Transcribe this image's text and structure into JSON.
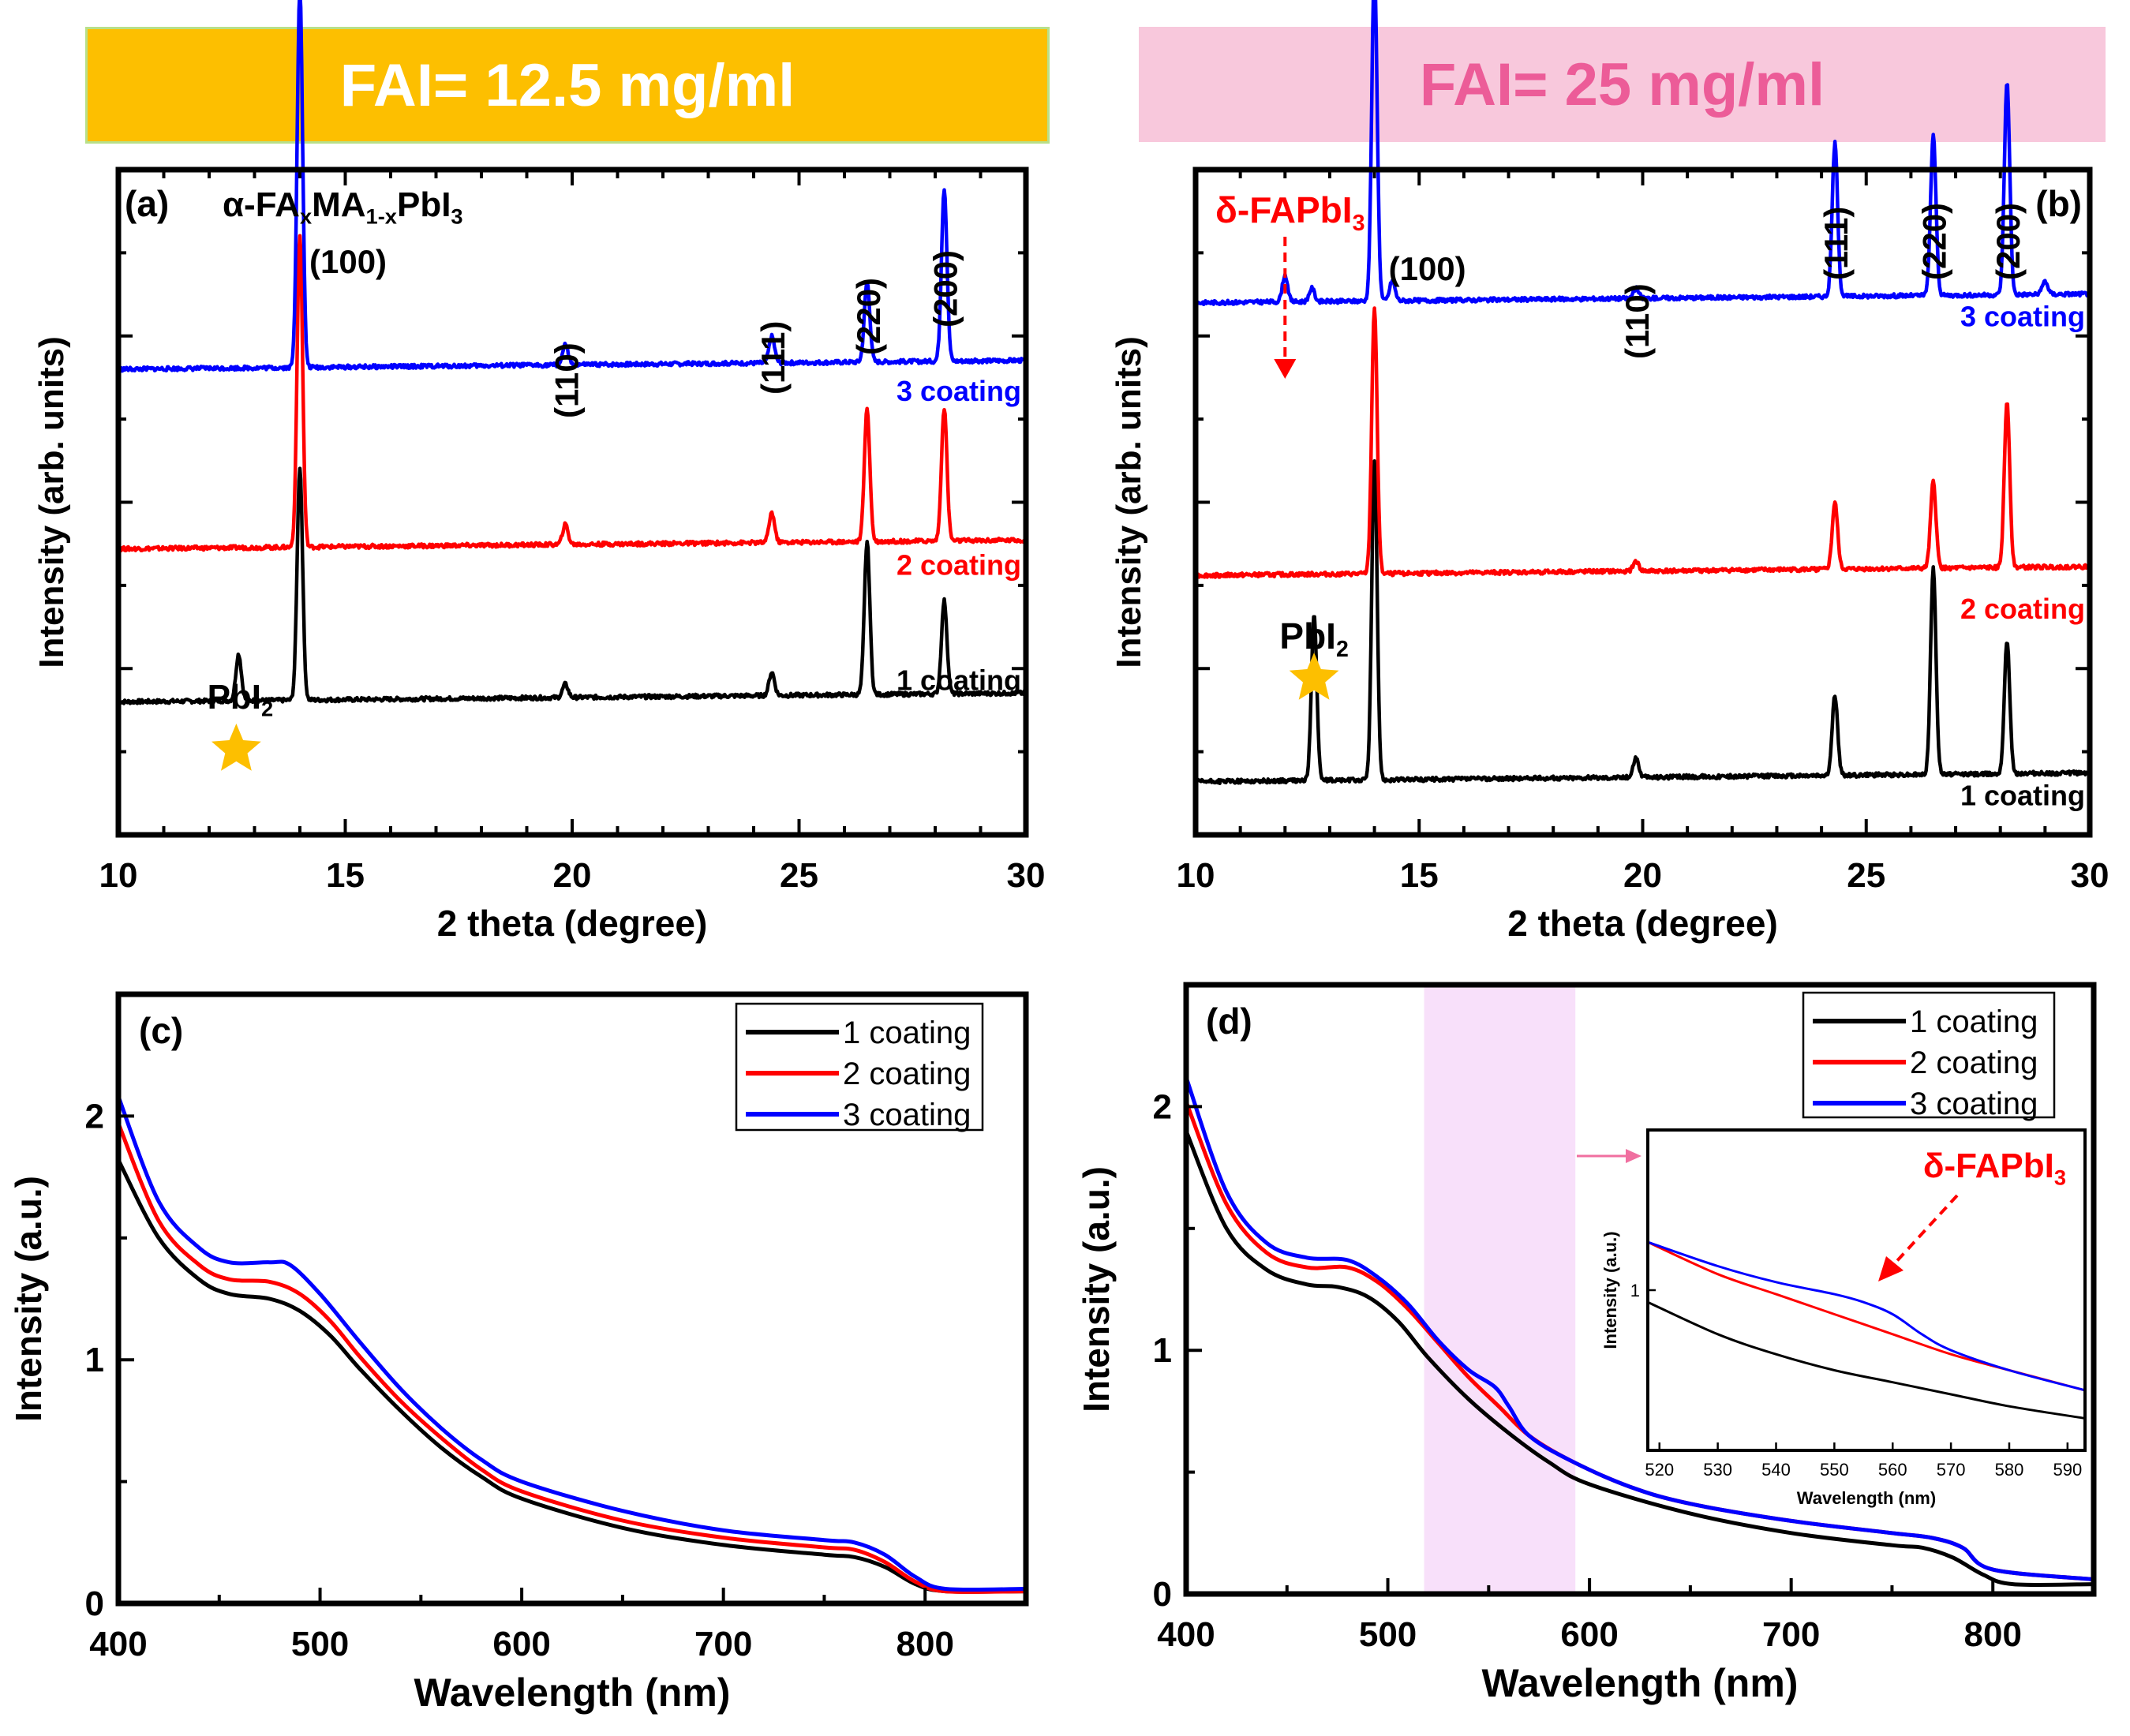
{
  "banners": {
    "left": {
      "text": "FAI= 12.5 mg/ml",
      "color": "#fdbf00"
    },
    "right": {
      "text": "FAI= 25 mg/ml",
      "color": "#f8c8dc"
    }
  },
  "colors": {
    "coating1": "#000000",
    "coating2": "#ff0000",
    "coating3": "#0000ff",
    "star": "#fdbf00",
    "highlight": "#f8e0fa",
    "pink_arrow": "#f06fa0"
  },
  "chart_data": [
    {
      "id": "a",
      "type": "line",
      "panel_label": "(a)",
      "title": "α-FAxMA1-xPbI3",
      "title_parts": {
        "main": "α-FA",
        "sub1": "x",
        "mid": "MA",
        "sub2": "1-x",
        "end": "PbI",
        "sub3": "3"
      },
      "xlabel": "2 theta (degree)",
      "ylabel": "Intensity (arb. units)",
      "xlim": [
        10,
        30
      ],
      "xticks": [
        "10",
        "15",
        "20",
        "25",
        "30"
      ],
      "series": [
        {
          "name": "1 coating",
          "label": "1 coating",
          "baseline": 0.2,
          "peaks": [
            [
              12.65,
              0.07
            ],
            [
              14.0,
              0.35
            ],
            [
              19.85,
              0.02
            ],
            [
              24.4,
              0.035
            ],
            [
              26.5,
              0.23
            ],
            [
              28.2,
              0.14
            ]
          ]
        },
        {
          "name": "2 coating",
          "label": "2 coating",
          "baseline": 0.43,
          "peaks": [
            [
              14.0,
              0.47
            ],
            [
              19.85,
              0.03
            ],
            [
              24.4,
              0.045
            ],
            [
              26.5,
              0.2
            ],
            [
              28.2,
              0.2
            ]
          ]
        },
        {
          "name": "3 coating",
          "label": "3 coating",
          "baseline": 0.7,
          "peaks": [
            [
              14.0,
              0.57
            ],
            [
              19.85,
              0.03
            ],
            [
              24.4,
              0.04
            ],
            [
              26.5,
              0.12
            ],
            [
              28.2,
              0.26
            ]
          ]
        }
      ],
      "annotations": [
        {
          "text": "(100)",
          "x": 14.0
        },
        {
          "text": "(110)",
          "x": 19.85
        },
        {
          "text": "(111)",
          "x": 24.4
        },
        {
          "text": "(220)",
          "x": 26.5
        },
        {
          "text": "(200)",
          "x": 28.2
        }
      ],
      "pbi2": {
        "main": "PbI",
        "sub": "2",
        "x": 12.65
      }
    },
    {
      "id": "b",
      "type": "line",
      "panel_label": "(b)",
      "xlabel": "2 theta (degree)",
      "ylabel": "Intensity (arb. units)",
      "xlim": [
        10,
        30
      ],
      "xticks": [
        "10",
        "15",
        "20",
        "25",
        "30"
      ],
      "series": [
        {
          "name": "1 coating",
          "label": "1 coating",
          "baseline": 0.08,
          "peaks": [
            [
              12.65,
              0.25
            ],
            [
              14.0,
              0.48
            ],
            [
              19.85,
              0.03
            ],
            [
              24.3,
              0.12
            ],
            [
              26.5,
              0.31
            ],
            [
              28.15,
              0.2
            ]
          ]
        },
        {
          "name": "2 coating",
          "label": "2 coating",
          "baseline": 0.39,
          "peaks": [
            [
              14.0,
              0.4
            ],
            [
              19.85,
              0.015
            ],
            [
              24.3,
              0.1
            ],
            [
              26.5,
              0.13
            ],
            [
              28.15,
              0.25
            ]
          ]
        },
        {
          "name": "3 coating",
          "label": "3 coating",
          "baseline": 0.8,
          "peaks": [
            [
              12.0,
              0.04
            ],
            [
              12.6,
              0.02
            ],
            [
              14.0,
              0.5
            ],
            [
              14.4,
              0.03
            ],
            [
              19.85,
              0.015
            ],
            [
              24.3,
              0.23
            ],
            [
              26.5,
              0.24
            ],
            [
              28.15,
              0.32
            ],
            [
              29.0,
              0.02
            ]
          ]
        }
      ],
      "annotations": [
        {
          "text": "(100)",
          "x": 14.0
        },
        {
          "text": "(110)",
          "x": 19.85
        },
        {
          "text": "(111)",
          "x": 24.3
        },
        {
          "text": "(220)",
          "x": 26.5
        },
        {
          "text": "(200)",
          "x": 28.15
        }
      ],
      "delta": {
        "main": "δ-FAPbI",
        "sub": "3",
        "x": 12.0
      },
      "pbi2": {
        "main": "PbI",
        "sub": "2",
        "x": 12.65
      }
    },
    {
      "id": "c",
      "type": "line",
      "panel_label": "(c)",
      "xlabel": "Wavelength (nm)",
      "ylabel": "Intensity (a.u.)",
      "xlim": [
        400,
        850
      ],
      "ylim": [
        0,
        2.5
      ],
      "xticks": [
        "400",
        "500",
        "600",
        "700",
        "800"
      ],
      "yticks": [
        "0",
        "1",
        "2"
      ],
      "legend": {
        "position": "top-right",
        "entries": [
          "1 coating",
          "2 coating",
          "3 coating"
        ]
      },
      "series": [
        {
          "name": "1 coating",
          "x": [
            400,
            420,
            440,
            455,
            475,
            490,
            505,
            520,
            540,
            560,
            580,
            600,
            650,
            700,
            750,
            765,
            780,
            795,
            810,
            850
          ],
          "y": [
            1.82,
            1.5,
            1.33,
            1.27,
            1.25,
            1.2,
            1.1,
            0.96,
            0.79,
            0.64,
            0.52,
            0.43,
            0.31,
            0.24,
            0.2,
            0.19,
            0.15,
            0.08,
            0.05,
            0.05
          ]
        },
        {
          "name": "2 coating",
          "x": [
            400,
            420,
            440,
            455,
            475,
            490,
            505,
            520,
            540,
            560,
            580,
            600,
            650,
            700,
            750,
            765,
            780,
            795,
            810,
            850
          ],
          "y": [
            1.97,
            1.57,
            1.39,
            1.33,
            1.32,
            1.27,
            1.16,
            1.01,
            0.83,
            0.68,
            0.55,
            0.46,
            0.34,
            0.27,
            0.23,
            0.22,
            0.17,
            0.09,
            0.05,
            0.05
          ]
        },
        {
          "name": "3 coating",
          "x": [
            400,
            420,
            440,
            455,
            475,
            485,
            500,
            520,
            540,
            560,
            580,
            600,
            650,
            700,
            750,
            765,
            780,
            795,
            810,
            850
          ],
          "y": [
            2.08,
            1.65,
            1.46,
            1.4,
            1.4,
            1.39,
            1.27,
            1.07,
            0.88,
            0.72,
            0.59,
            0.5,
            0.38,
            0.3,
            0.26,
            0.25,
            0.2,
            0.11,
            0.06,
            0.06
          ]
        }
      ]
    },
    {
      "id": "d",
      "type": "line",
      "panel_label": "(d)",
      "xlabel": "Wavelength (nm)",
      "ylabel": "Intensity (a.u.)",
      "xlim": [
        400,
        850
      ],
      "ylim": [
        0,
        2.5
      ],
      "xticks": [
        "400",
        "500",
        "600",
        "700",
        "800"
      ],
      "yticks": [
        "0",
        "1",
        "2"
      ],
      "highlight_range": [
        518,
        593
      ],
      "legend": {
        "position": "top-right",
        "entries": [
          "1 coating",
          "2 coating",
          "3 coating"
        ]
      },
      "series": [
        {
          "name": "1 coating",
          "x": [
            400,
            420,
            440,
            460,
            475,
            490,
            505,
            520,
            540,
            560,
            580,
            600,
            650,
            700,
            750,
            765,
            780,
            795,
            810,
            850
          ],
          "y": [
            1.9,
            1.5,
            1.33,
            1.27,
            1.26,
            1.22,
            1.12,
            0.97,
            0.8,
            0.66,
            0.54,
            0.45,
            0.33,
            0.25,
            0.2,
            0.19,
            0.15,
            0.08,
            0.04,
            0.04
          ]
        },
        {
          "name": "2 coating",
          "x": [
            400,
            420,
            440,
            460,
            480,
            495,
            510,
            525,
            540,
            555,
            570,
            590,
            620,
            650,
            700,
            750,
            770,
            785,
            800,
            850
          ],
          "y": [
            2.02,
            1.6,
            1.4,
            1.34,
            1.34,
            1.28,
            1.17,
            1.03,
            0.89,
            0.77,
            0.65,
            0.55,
            0.44,
            0.37,
            0.3,
            0.25,
            0.23,
            0.19,
            0.1,
            0.06
          ]
        },
        {
          "name": "3 coating",
          "x": [
            400,
            420,
            440,
            460,
            480,
            495,
            510,
            525,
            540,
            553,
            560,
            570,
            590,
            620,
            650,
            700,
            750,
            770,
            785,
            800,
            850
          ],
          "y": [
            2.12,
            1.65,
            1.44,
            1.38,
            1.37,
            1.3,
            1.19,
            1.04,
            0.92,
            0.85,
            0.77,
            0.65,
            0.55,
            0.44,
            0.37,
            0.3,
            0.25,
            0.23,
            0.19,
            0.1,
            0.06
          ]
        }
      ],
      "inset": {
        "xlabel": "Wavelength (nm)",
        "ylabel": "Intensity (a.u.)",
        "xlim": [
          518,
          593
        ],
        "ylim": [
          0.6,
          1.4
        ],
        "xticks": [
          "520",
          "530",
          "540",
          "550",
          "560",
          "570",
          "580",
          "590"
        ],
        "yticks": [
          "1"
        ],
        "series": [
          {
            "name": "1 coating",
            "x": [
              518,
              530,
              540,
              550,
              560,
              570,
              580,
              593
            ],
            "y": [
              0.97,
              0.89,
              0.84,
              0.8,
              0.77,
              0.74,
              0.71,
              0.68
            ]
          },
          {
            "name": "2 coating",
            "x": [
              518,
              530,
              540,
              550,
              560,
              570,
              580,
              593
            ],
            "y": [
              1.12,
              1.04,
              0.99,
              0.94,
              0.89,
              0.84,
              0.8,
              0.75
            ]
          },
          {
            "name": "3 coating",
            "x": [
              518,
              530,
              540,
              550,
              555,
              560,
              565,
              570,
              580,
              593
            ],
            "y": [
              1.12,
              1.06,
              1.02,
              0.99,
              0.97,
              0.94,
              0.89,
              0.85,
              0.8,
              0.75
            ]
          }
        ],
        "annotation": {
          "main": "δ-FAPbI",
          "sub": "3",
          "x": 557
        }
      }
    }
  ]
}
